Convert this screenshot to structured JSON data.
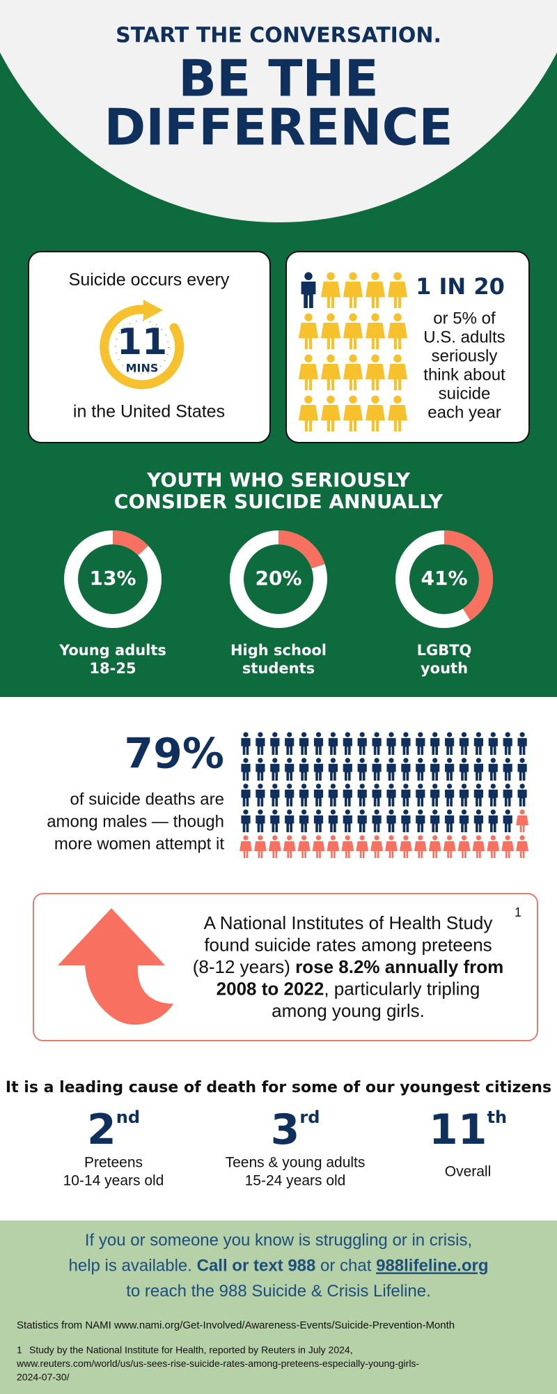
{
  "header": {
    "kicker": "START THE CONVERSATION.",
    "title_lines": [
      "BE THE",
      "DIFFERENCE"
    ]
  },
  "cards": {
    "frequency": {
      "prefix": "Suicide occurs every",
      "number": "11",
      "unit": "MINS",
      "suffix": "in the United States"
    },
    "ratio": {
      "headline": "1 IN 20",
      "lines": [
        "or 5% of",
        "U.S. adults",
        "seriously",
        "think about",
        "suicide",
        "each year"
      ],
      "highlighted": 1,
      "total": 20
    }
  },
  "youth": {
    "title_lines": [
      "YOUTH WHO SERIOUSLY",
      "CONSIDER SUICIDE ANNUALLY"
    ],
    "values": [
      13,
      20,
      41
    ],
    "value_labels": [
      "13%",
      "20%",
      "41%"
    ],
    "labels": [
      [
        "Young adults",
        "18-25"
      ],
      [
        "High school",
        "students"
      ],
      [
        "LGBTQ",
        "youth"
      ]
    ]
  },
  "males": {
    "headline": "79%",
    "value": 79,
    "total": 100,
    "lines": [
      "of suicide deaths are",
      "among males —  though",
      "more women attempt it"
    ]
  },
  "study": {
    "marker": "1",
    "lines": [
      [
        {
          "text": "A National Institutes of Health Study"
        }
      ],
      [
        {
          "text": "found suicide rates among preteens"
        }
      ],
      [
        {
          "text": "(8-12 years) "
        },
        {
          "text": "rose 8.2% annually from",
          "bold": true
        }
      ],
      [
        {
          "text": "2008 to 2022",
          "bold": true
        },
        {
          "text": ", particularly tripling"
        }
      ],
      [
        {
          "text": "among young girls."
        }
      ]
    ]
  },
  "ranks": {
    "title": "It is a leading cause of death for some of our youngest citizens",
    "items": [
      {
        "rank": "2",
        "suffix": "nd",
        "lines": [
          "Preteens",
          "10-14 years old"
        ]
      },
      {
        "rank": "3",
        "suffix": "rd",
        "lines": [
          "Teens & young adults",
          "15-24 years old"
        ]
      },
      {
        "rank": "11",
        "suffix": "th",
        "lines": [
          "Overall"
        ]
      }
    ]
  },
  "footer": {
    "lines": [
      [
        {
          "text": "If you or someone you know is struggling or in crisis,"
        }
      ],
      [
        {
          "text": "help is available. "
        },
        {
          "text": "Call or text 988",
          "bold": true
        },
        {
          "text": " or chat "
        },
        {
          "text": "988lifeline.org",
          "bold": true,
          "underline": true
        }
      ],
      [
        {
          "text": "to reach the 988 Suicide & Crisis Lifeline."
        }
      ]
    ],
    "source": "Statistics from NAMI www.nami.org/Get-Involved/Awareness-Events/Suicide-Prevention-Month",
    "footnote": {
      "marker": "1",
      "lines": [
        "Study by the National Institute for Health, reported by Reuters in July 2024,",
        "www.reuters.com/world/us/us-sees-rise-suicide-rates-among-preteens-especially-young-girls-",
        "2024-07-30/"
      ]
    }
  }
}
